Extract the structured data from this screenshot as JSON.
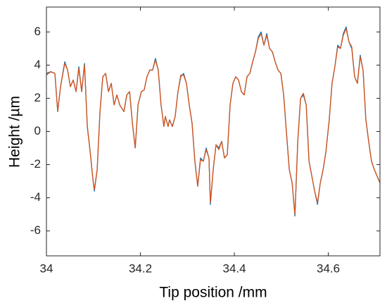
{
  "chart_data": {
    "type": "line",
    "xlabel": "Tip position /mm",
    "ylabel": "Height /µm",
    "x": [
      34.0,
      34.009,
      34.018,
      34.024,
      34.03,
      34.039,
      34.045,
      34.051,
      34.057,
      34.063,
      34.069,
      34.075,
      34.081,
      34.087,
      34.093,
      34.099,
      34.102,
      34.108,
      34.114,
      34.12,
      34.126,
      34.132,
      34.138,
      34.144,
      34.15,
      34.156,
      34.165,
      34.171,
      34.177,
      34.183,
      34.189,
      34.195,
      34.202,
      34.208,
      34.214,
      34.22,
      34.226,
      34.232,
      34.238,
      34.244,
      34.25,
      34.253,
      34.259,
      34.262,
      34.268,
      34.274,
      34.28,
      34.286,
      34.292,
      34.298,
      34.304,
      34.31,
      34.316,
      34.322,
      34.328,
      34.334,
      34.34,
      34.346,
      34.349,
      34.355,
      34.361,
      34.367,
      34.373,
      34.379,
      34.385,
      34.391,
      34.397,
      34.403,
      34.409,
      34.415,
      34.421,
      34.427,
      34.433,
      34.439,
      34.445,
      34.451,
      34.457,
      34.463,
      34.469,
      34.475,
      34.481,
      34.487,
      34.493,
      34.499,
      34.505,
      34.511,
      34.517,
      34.523,
      34.529,
      34.535,
      34.541,
      34.547,
      34.553,
      34.559,
      34.565,
      34.571,
      34.577,
      34.583,
      34.589,
      34.595,
      34.602,
      34.608,
      34.614,
      34.62,
      34.626,
      34.632,
      34.638,
      34.644,
      34.65,
      34.656,
      34.662,
      34.668,
      34.674,
      34.68,
      34.686,
      34.692,
      34.698,
      34.704,
      34.71
    ],
    "series": [
      {
        "color": "#0072bd",
        "values": [
          3.5,
          3.6,
          3.5,
          1.2,
          2.7,
          4.2,
          3.7,
          2.7,
          3.1,
          2.4,
          3.9,
          2.4,
          4.1,
          0.3,
          -1.2,
          -2.9,
          -3.6,
          -2.3,
          1.2,
          3.3,
          3.5,
          2.4,
          2.9,
          1.6,
          2.2,
          1.6,
          1.2,
          2.2,
          2.4,
          0.5,
          -1.0,
          1.6,
          2.4,
          2.5,
          3.3,
          3.7,
          3.7,
          4.4,
          3.7,
          1.6,
          0.3,
          0.9,
          0.3,
          0.7,
          0.3,
          0.9,
          2.4,
          3.3,
          3.5,
          2.9,
          1.6,
          0.5,
          -1.8,
          -3.3,
          -1.6,
          -1.8,
          -1.0,
          -1.6,
          -4.4,
          -2.3,
          -0.8,
          -1.0,
          -0.6,
          -1.6,
          -1.4,
          1.6,
          2.9,
          3.3,
          3.1,
          2.4,
          2.2,
          3.3,
          3.5,
          4.2,
          4.8,
          5.7,
          6.0,
          5.2,
          5.9,
          5.0,
          4.8,
          4.2,
          3.7,
          3.5,
          2.2,
          -0.1,
          -2.3,
          -3.1,
          -5.1,
          -0.6,
          2.0,
          2.2,
          1.6,
          -1.8,
          -2.7,
          -3.6,
          -4.4,
          -3.1,
          -2.3,
          -1.2,
          0.7,
          2.9,
          3.9,
          5.2,
          5.0,
          5.9,
          6.3,
          5.4,
          5.0,
          3.3,
          2.9,
          4.6,
          3.7,
          0.7,
          -0.6,
          -1.8,
          -2.3,
          -2.7,
          -3.1
        ]
      },
      {
        "color": "#d95319",
        "values": [
          3.4,
          3.6,
          3.5,
          1.2,
          2.7,
          4.1,
          3.7,
          2.7,
          3.1,
          2.4,
          3.8,
          2.4,
          4.0,
          0.3,
          -1.2,
          -2.9,
          -3.5,
          -2.3,
          1.2,
          3.3,
          3.5,
          2.4,
          2.9,
          1.6,
          2.2,
          1.6,
          1.2,
          2.2,
          2.4,
          0.5,
          -1.0,
          1.6,
          2.4,
          2.5,
          3.3,
          3.7,
          3.7,
          4.3,
          3.7,
          1.6,
          0.3,
          0.9,
          0.3,
          0.7,
          0.3,
          0.9,
          2.4,
          3.4,
          3.4,
          2.9,
          1.6,
          0.5,
          -1.8,
          -3.3,
          -1.7,
          -1.8,
          -1.1,
          -1.6,
          -4.3,
          -2.3,
          -0.8,
          -1.1,
          -0.6,
          -1.6,
          -1.4,
          1.6,
          2.9,
          3.3,
          3.1,
          2.4,
          2.2,
          3.3,
          3.5,
          4.2,
          4.8,
          5.6,
          5.9,
          5.2,
          5.8,
          5.0,
          4.8,
          4.2,
          3.7,
          3.5,
          2.2,
          -0.1,
          -2.3,
          -3.1,
          -5.0,
          -0.6,
          2.0,
          2.3,
          1.6,
          -1.8,
          -2.7,
          -3.6,
          -4.3,
          -3.1,
          -2.3,
          -1.2,
          0.7,
          2.9,
          3.9,
          5.1,
          5.0,
          5.8,
          6.2,
          5.4,
          5.1,
          3.3,
          2.9,
          4.5,
          3.7,
          0.7,
          -0.6,
          -1.8,
          -2.3,
          -2.7,
          -3.1
        ]
      }
    ],
    "xlim": [
      34,
      34.71
    ],
    "xticks": [
      34,
      34.2,
      34.4,
      34.6
    ],
    "ylim": [
      -7.5,
      7.5
    ],
    "yticks": [
      -6,
      -4,
      -2,
      0,
      2,
      4,
      6
    ]
  }
}
